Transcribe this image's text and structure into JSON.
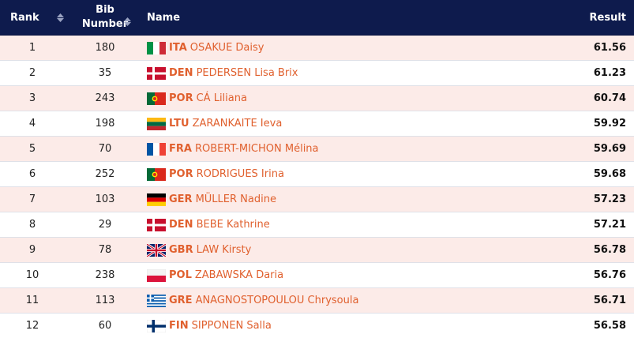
{
  "header": {
    "rank_label": "Rank",
    "bib_label_line1": "Bib",
    "bib_label_line2": "Number",
    "name_label": "Name",
    "result_label": "Result"
  },
  "rows": [
    {
      "rank": "1",
      "bib": "180",
      "noc": "ITA",
      "name": "OSAKUE Daisy",
      "result": "61.56",
      "flag": "italy"
    },
    {
      "rank": "2",
      "bib": "35",
      "noc": "DEN",
      "name": "PEDERSEN Lisa Brix",
      "result": "61.23",
      "flag": "denmark"
    },
    {
      "rank": "3",
      "bib": "243",
      "noc": "POR",
      "name": "CÁ Liliana",
      "result": "60.74",
      "flag": "portugal"
    },
    {
      "rank": "4",
      "bib": "198",
      "noc": "LTU",
      "name": "ZARANKAITE Ieva",
      "result": "59.92",
      "flag": "lithuania"
    },
    {
      "rank": "5",
      "bib": "70",
      "noc": "FRA",
      "name": "ROBERT-MICHON Mélina",
      "result": "59.69",
      "flag": "france"
    },
    {
      "rank": "6",
      "bib": "252",
      "noc": "POR",
      "name": "RODRIGUES Irina",
      "result": "59.68",
      "flag": "portugal"
    },
    {
      "rank": "7",
      "bib": "103",
      "noc": "GER",
      "name": "MÜLLER Nadine",
      "result": "57.23",
      "flag": "germany"
    },
    {
      "rank": "8",
      "bib": "29",
      "noc": "DEN",
      "name": "BEBE Kathrine",
      "result": "57.21",
      "flag": "denmark"
    },
    {
      "rank": "9",
      "bib": "78",
      "noc": "GBR",
      "name": "LAW Kirsty",
      "result": "56.78",
      "flag": "uk"
    },
    {
      "rank": "10",
      "bib": "238",
      "noc": "POL",
      "name": "ZABAWSKA Daria",
      "result": "56.76",
      "flag": "poland"
    },
    {
      "rank": "11",
      "bib": "113",
      "noc": "GRE",
      "name": "ANAGNOSTOPOULOU Chrysoula",
      "result": "56.71",
      "flag": "greece"
    },
    {
      "rank": "12",
      "bib": "60",
      "noc": "FIN",
      "name": "SIPPONEN Salla",
      "result": "56.58",
      "flag": "finland"
    }
  ],
  "colors": {
    "header_bg": "#0e1b4d",
    "alt_row_bg": "#fcebe8",
    "accent": "#e0602e"
  },
  "icons": {
    "sort": "sort-arrows-icon"
  }
}
